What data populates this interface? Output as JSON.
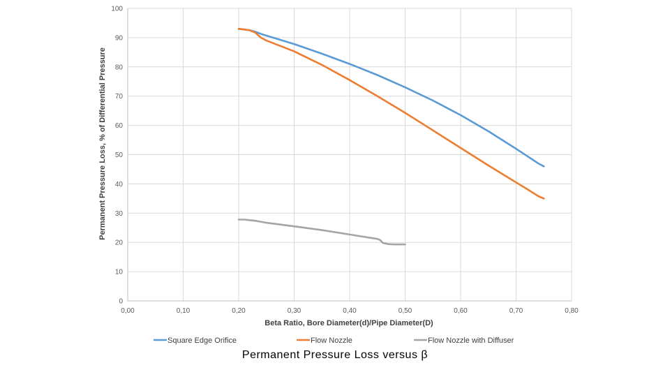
{
  "chart_data": {
    "type": "line",
    "title": "Permanent Pressure Loss versus β",
    "xlabel": "Beta Ratio, Bore Diameter(d)/Pipe Diameter(D)",
    "ylabel": "Permanent Pressure Loss, % of Differential Pressure",
    "xlim": [
      0,
      0.8
    ],
    "ylim": [
      0,
      100
    ],
    "x_ticks": [
      "0,00",
      "0,10",
      "0,20",
      "0,30",
      "0,40",
      "0,50",
      "0,60",
      "0,70",
      "0,80"
    ],
    "y_ticks": [
      "0",
      "10",
      "20",
      "30",
      "40",
      "50",
      "60",
      "70",
      "80",
      "90",
      "100"
    ],
    "grid": true,
    "legend_position": "bottom",
    "series": [
      {
        "name": "Square Edge Orifice",
        "color": "#5B9BD5",
        "x": [
          0.2,
          0.21,
          0.22,
          0.23,
          0.24,
          0.25,
          0.3,
          0.35,
          0.4,
          0.45,
          0.5,
          0.55,
          0.6,
          0.65,
          0.7,
          0.72,
          0.74,
          0.75
        ],
        "y": [
          93,
          92.8,
          92.5,
          92,
          91.3,
          90.7,
          87.8,
          84.5,
          81,
          77.2,
          73,
          68.5,
          63.5,
          58,
          52,
          49.5,
          47,
          46
        ]
      },
      {
        "name": "Flow Nozzle",
        "color": "#ED7D31",
        "x": [
          0.2,
          0.21,
          0.22,
          0.23,
          0.24,
          0.25,
          0.3,
          0.35,
          0.4,
          0.45,
          0.5,
          0.55,
          0.6,
          0.65,
          0.7,
          0.72,
          0.74,
          0.75
        ],
        "y": [
          93,
          92.8,
          92.5,
          91.7,
          90,
          89,
          85.3,
          80.7,
          75.5,
          70,
          64.3,
          58.3,
          52.3,
          46.3,
          40.5,
          38.2,
          35.8,
          35
        ]
      },
      {
        "name": "Flow Nozzle with Diffuser",
        "color": "#A5A5A5",
        "x": [
          0.2,
          0.21,
          0.22,
          0.23,
          0.25,
          0.3,
          0.35,
          0.4,
          0.45,
          0.455,
          0.46,
          0.47,
          0.48,
          0.5
        ],
        "y": [
          27.8,
          27.8,
          27.6,
          27.4,
          26.7,
          25.5,
          24.2,
          22.7,
          21.2,
          20.8,
          19.8,
          19.4,
          19.3,
          19.3
        ]
      }
    ]
  }
}
